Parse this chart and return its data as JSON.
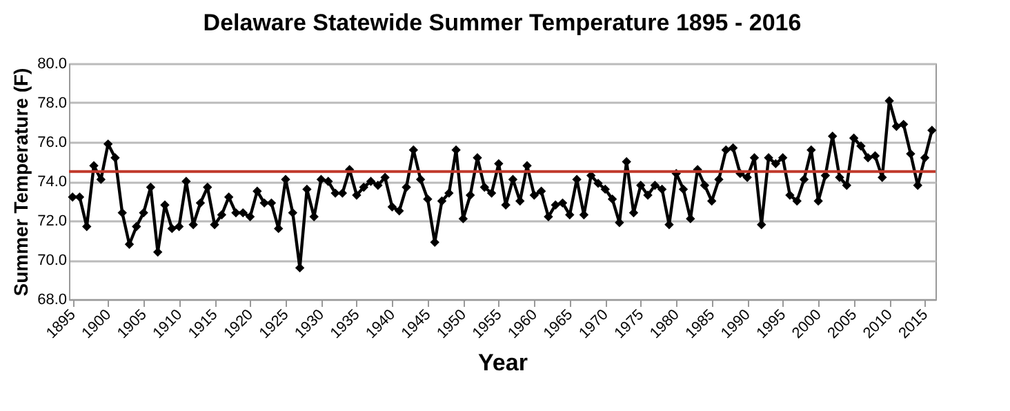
{
  "chart_data": {
    "type": "line",
    "title": "Delaware Statewide Summer Temperature 1895 - 2016",
    "xlabel": "Year",
    "ylabel": "Summer Temperature (F)",
    "x": [
      1895,
      1896,
      1897,
      1898,
      1899,
      1900,
      1901,
      1902,
      1903,
      1904,
      1905,
      1906,
      1907,
      1908,
      1909,
      1910,
      1911,
      1912,
      1913,
      1914,
      1915,
      1916,
      1917,
      1918,
      1919,
      1920,
      1921,
      1922,
      1923,
      1924,
      1925,
      1926,
      1927,
      1928,
      1929,
      1930,
      1931,
      1932,
      1933,
      1934,
      1935,
      1936,
      1937,
      1938,
      1939,
      1940,
      1941,
      1942,
      1943,
      1944,
      1945,
      1946,
      1947,
      1948,
      1949,
      1950,
      1951,
      1952,
      1953,
      1954,
      1955,
      1956,
      1957,
      1958,
      1959,
      1960,
      1961,
      1962,
      1963,
      1964,
      1965,
      1966,
      1967,
      1968,
      1969,
      1970,
      1971,
      1972,
      1973,
      1974,
      1975,
      1976,
      1977,
      1978,
      1979,
      1980,
      1981,
      1982,
      1983,
      1984,
      1985,
      1986,
      1987,
      1988,
      1989,
      1990,
      1991,
      1992,
      1993,
      1994,
      1995,
      1996,
      1997,
      1998,
      1999,
      2000,
      2001,
      2002,
      2003,
      2004,
      2005,
      2006,
      2007,
      2008,
      2009,
      2010,
      2011,
      2012,
      2013,
      2014,
      2015,
      2016
    ],
    "series": [
      {
        "color": "#000000",
        "values": [
          73.2,
          73.2,
          71.7,
          74.8,
          74.1,
          75.9,
          75.2,
          72.4,
          70.8,
          71.7,
          72.4,
          73.7,
          70.4,
          72.8,
          71.6,
          71.7,
          74.0,
          71.8,
          72.9,
          73.7,
          71.8,
          72.3,
          73.2,
          72.4,
          72.4,
          72.2,
          73.5,
          72.9,
          72.9,
          71.6,
          74.1,
          72.4,
          69.6,
          73.6,
          72.2,
          74.1,
          74.0,
          73.4,
          73.4,
          74.6,
          73.3,
          73.7,
          74.0,
          73.8,
          74.2,
          72.7,
          72.5,
          73.7,
          75.6,
          74.1,
          73.1,
          70.9,
          73.0,
          73.4,
          75.6,
          72.1,
          73.3,
          75.2,
          73.7,
          73.4,
          74.9,
          72.8,
          74.1,
          73.0,
          74.8,
          73.3,
          73.5,
          72.2,
          72.8,
          72.9,
          72.3,
          74.1,
          72.3,
          74.3,
          73.9,
          73.6,
          73.1,
          71.9,
          75.0,
          72.4,
          73.8,
          73.3,
          73.8,
          73.6,
          71.8,
          74.4,
          73.6,
          72.1,
          74.6,
          73.8,
          73.0,
          74.1,
          75.6,
          75.7,
          74.4,
          74.2,
          75.2,
          71.8,
          75.2,
          74.9,
          75.2,
          73.3,
          73.0,
          74.1,
          75.6,
          73.0,
          74.3,
          76.3,
          74.2,
          73.8,
          76.2,
          75.8,
          75.2,
          75.3,
          74.2,
          78.1,
          76.8,
          76.9,
          75.4,
          73.8,
          75.2,
          76.6
        ]
      }
    ],
    "xlim": [
      1894.5,
      2016.5
    ],
    "xticks": [
      1895,
      1900,
      1905,
      1910,
      1915,
      1920,
      1925,
      1930,
      1935,
      1940,
      1945,
      1950,
      1955,
      1960,
      1965,
      1970,
      1975,
      1980,
      1985,
      1990,
      1995,
      2000,
      2005,
      2010,
      2015
    ],
    "ylim": [
      68,
      80
    ],
    "yticks": [
      {
        "value": 68,
        "label": "68.0"
      },
      {
        "value": 70,
        "label": "70.0"
      },
      {
        "value": 72,
        "label": "72.0"
      },
      {
        "value": 74,
        "label": "74.0"
      },
      {
        "value": 76,
        "label": "76.0"
      },
      {
        "value": 78,
        "label": "78.0"
      },
      {
        "value": 80,
        "label": "80.0"
      }
    ],
    "ref_lines": [
      {
        "axis": "y",
        "value": 74.5,
        "color": "#c0392b"
      }
    ],
    "grid": "y",
    "marker": "diamond",
    "line_style": "solid"
  }
}
